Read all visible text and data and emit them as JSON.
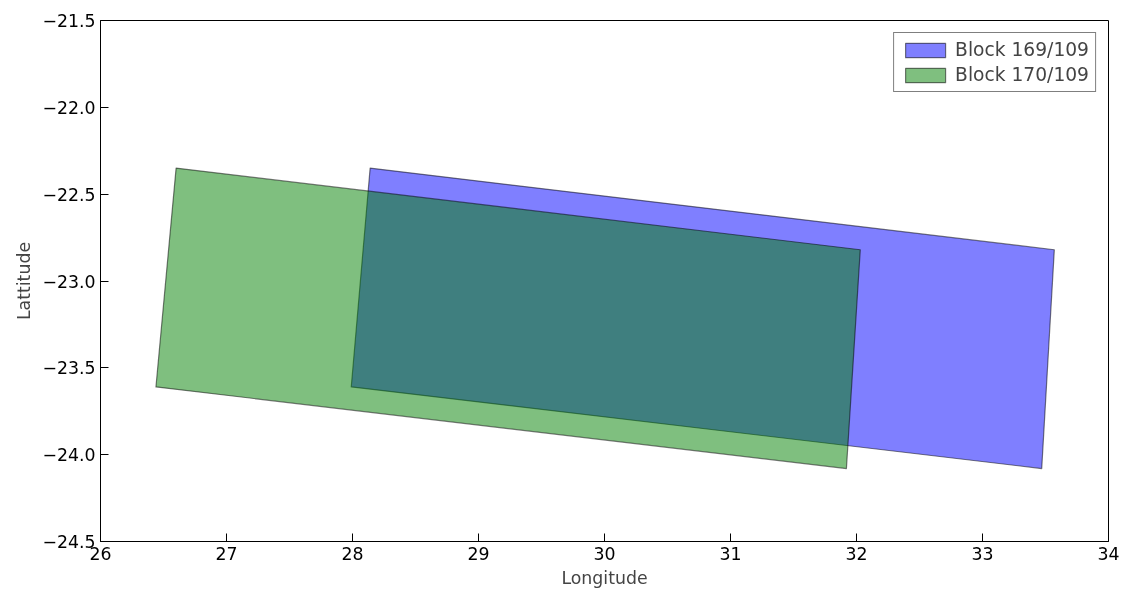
{
  "chart_data": {
    "type": "area",
    "xlabel": "Longitude",
    "ylabel": "Lattitude",
    "series": [
      {
        "name": "Block 169/109",
        "color": "#0000ff",
        "x": [
          28.14,
          33.57,
          33.47,
          27.99
        ],
        "values": [
          -22.35,
          -22.82,
          -24.08,
          -23.61
        ]
      },
      {
        "name": "Block 170/109",
        "color": "#008000",
        "x": [
          26.6,
          32.03,
          31.92,
          26.44
        ],
        "values": [
          -22.35,
          -22.82,
          -24.08,
          -23.61
        ]
      }
    ],
    "xlim": [
      26,
      34
    ],
    "ylim": [
      -24.5,
      -21.5
    ],
    "xticks": [
      26,
      27,
      28,
      29,
      30,
      31,
      32,
      33,
      34
    ],
    "yticks": [
      {
        "value": -24.5,
        "label": "−24.5"
      },
      {
        "value": -24.0,
        "label": "−24.0"
      },
      {
        "value": -23.5,
        "label": "−23.5"
      },
      {
        "value": -23.0,
        "label": "−23.0"
      },
      {
        "value": -22.5,
        "label": "−22.5"
      },
      {
        "value": -22.0,
        "label": "−22.0"
      },
      {
        "value": -21.5,
        "label": "−21.5"
      }
    ],
    "grid": false,
    "legend": "top right"
  }
}
